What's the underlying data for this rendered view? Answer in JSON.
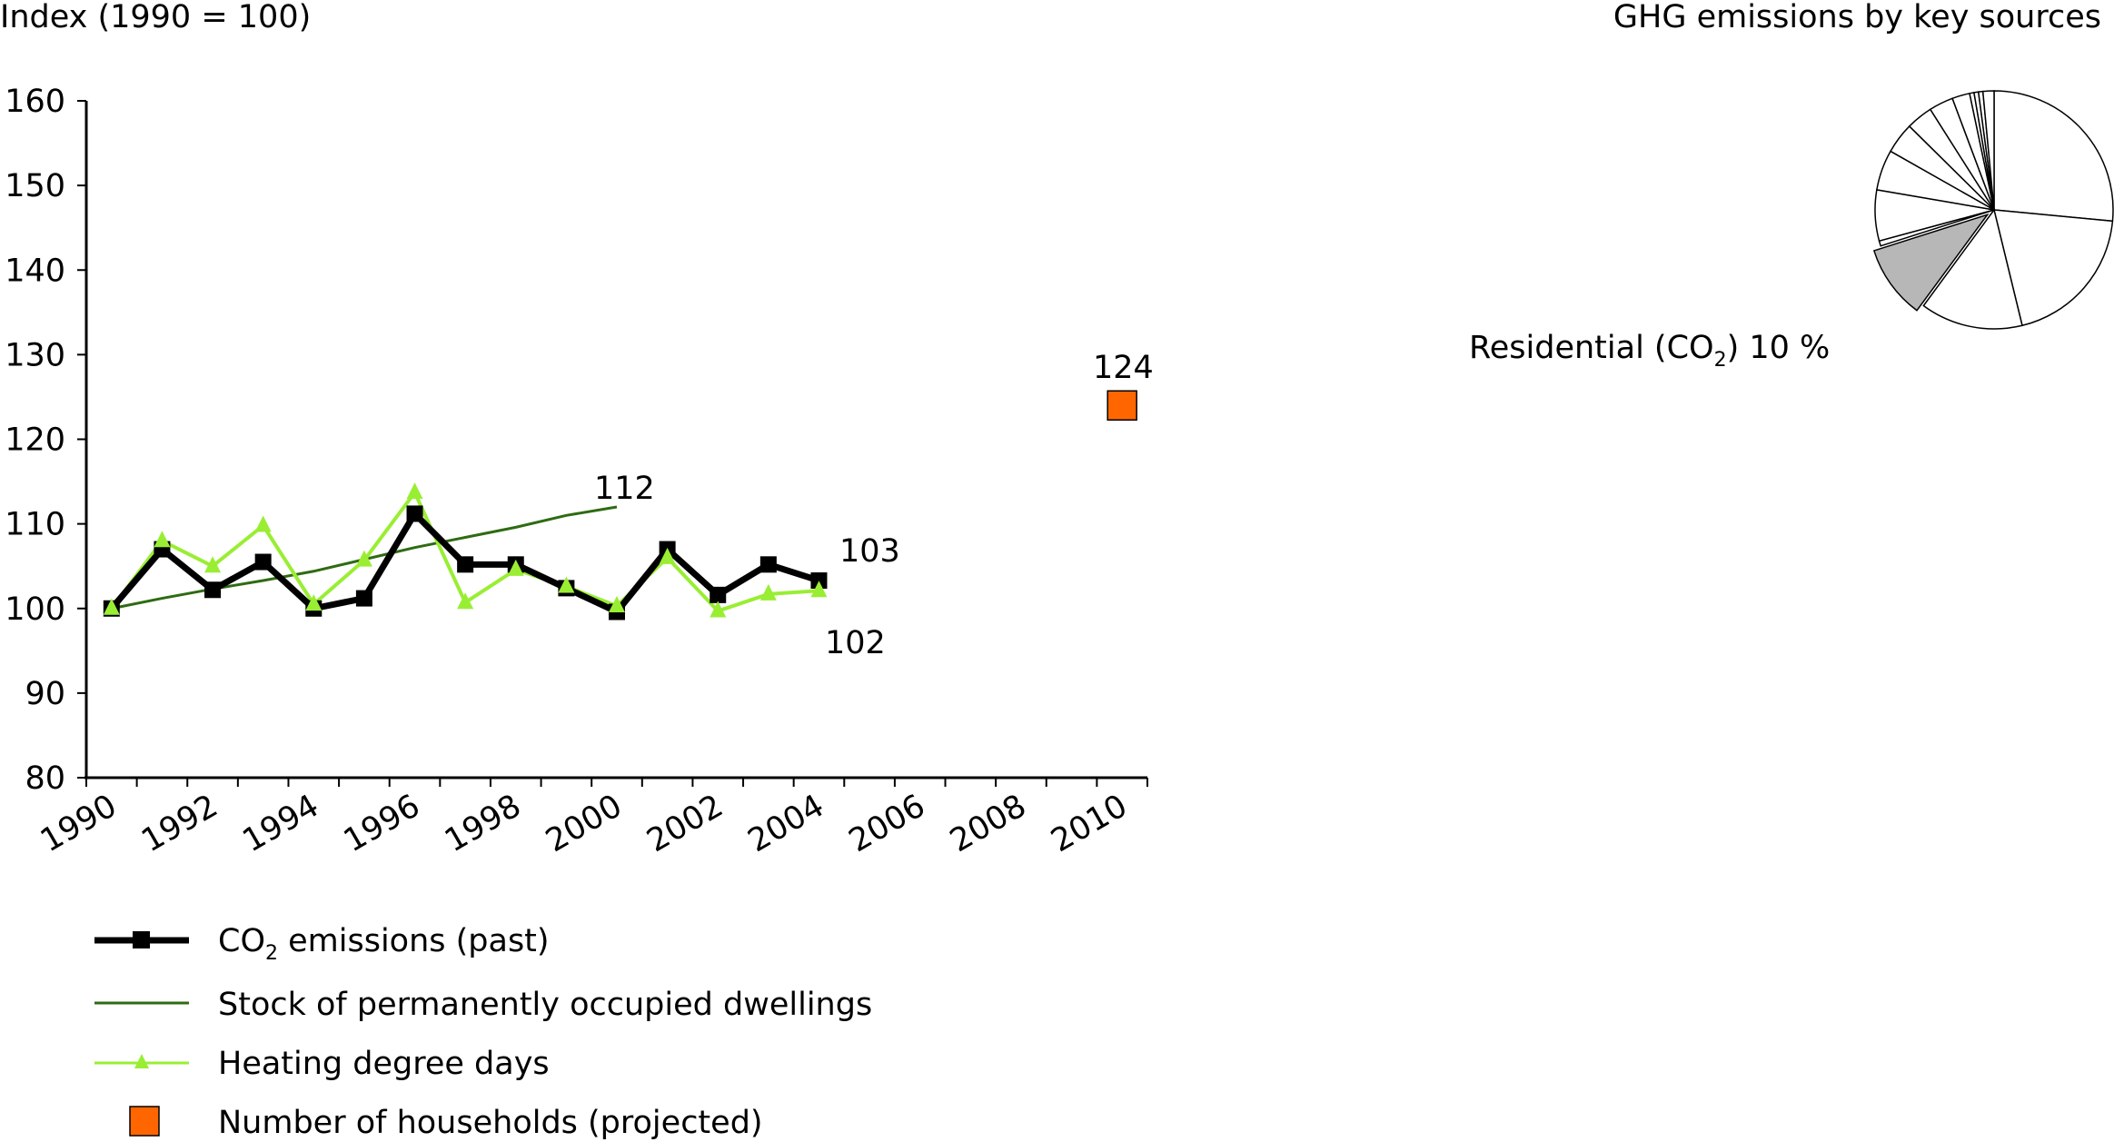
{
  "chart_data": [
    {
      "type": "line",
      "ylabel": "Index (1990 = 100)",
      "ylim": [
        80,
        160
      ],
      "yticks": [
        80,
        90,
        100,
        110,
        120,
        130,
        140,
        150,
        160
      ],
      "xlim": [
        1990,
        2011
      ],
      "xticks": [
        1990,
        1992,
        1994,
        1996,
        1998,
        2000,
        2002,
        2004,
        2006,
        2008,
        2010
      ],
      "grid": false,
      "legend_position": "bottom",
      "series": [
        {
          "name": "CO₂ emissions (past)",
          "style": "thick-line-square",
          "color": "#000000",
          "x": [
            1990,
            1991,
            1992,
            1993,
            1994,
            1995,
            1996,
            1997,
            1998,
            1999,
            2000,
            2001,
            2002,
            2003,
            2004
          ],
          "values": [
            100,
            107,
            102.2,
            105.5,
            100,
            101.2,
            111.2,
            105.2,
            105.2,
            102.4,
            99.6,
            107,
            101.6,
            105.2,
            103.3
          ]
        },
        {
          "name": "Stock of permanently occupied dwellings",
          "style": "thin-line",
          "color": "#2e6b12",
          "x": [
            1990,
            1991,
            1992,
            1993,
            1994,
            1995,
            1996,
            1997,
            1998,
            1999,
            2000
          ],
          "values": [
            100,
            101.2,
            102.3,
            103.3,
            104.4,
            105.8,
            107.2,
            108.4,
            109.6,
            111,
            112
          ]
        },
        {
          "name": "Heating degree days",
          "style": "line-triangle",
          "color": "#99ee33",
          "x": [
            1990,
            1991,
            1992,
            1993,
            1994,
            1995,
            1996,
            1997,
            1998,
            1999,
            2000,
            2001,
            2002,
            2003,
            2004
          ],
          "values": [
            100,
            108,
            105,
            109.8,
            100.5,
            105.7,
            113.7,
            100.7,
            104.6,
            102.6,
            100.3,
            106,
            99.7,
            101.7,
            102.1
          ]
        },
        {
          "name": "Number of households (projected)",
          "style": "single-square",
          "color": "#ff6600",
          "x": [
            2010.5
          ],
          "values": [
            124
          ]
        }
      ],
      "annotations": [
        "112",
        "103",
        "102",
        "124"
      ]
    },
    {
      "type": "pie",
      "title": "GHG emissions by key sources",
      "highlight_label": "Residential (CO",
      "highlight_sub": "2",
      "highlight_value": ") 10 %",
      "highlight_share": 10,
      "highlight_color": "#b7b7b7",
      "slices": [
        26.5,
        19.7,
        13.9,
        10,
        0.7,
        6.9,
        5.5,
        4.2,
        3.6,
        3.3,
        2.4,
        0.6,
        0.6,
        0.6,
        1.5
      ]
    }
  ]
}
